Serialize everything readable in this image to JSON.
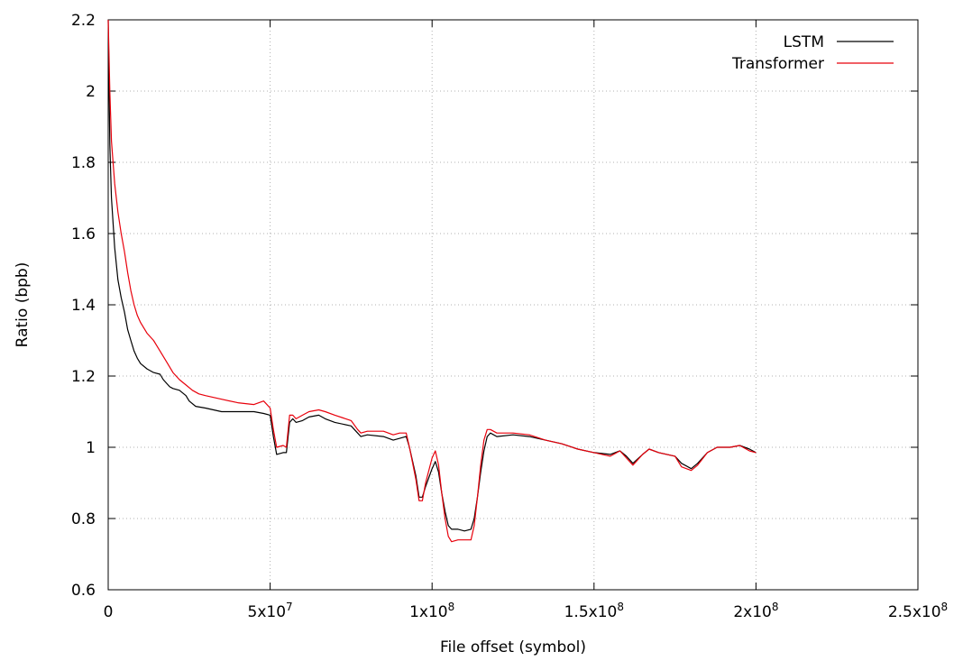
{
  "chart_data": {
    "type": "line",
    "title": "",
    "xlabel": "File offset (symbol)",
    "ylabel": "Ratio (bpb)",
    "xlim": [
      0,
      250000000
    ],
    "ylim": [
      0.6,
      2.2
    ],
    "grid": true,
    "legend_position": "top-right",
    "x_tick_labels": [
      "0",
      "5x10^7",
      "1x10^8",
      "1.5x10^8",
      "2x10^8",
      "2.5x10^8"
    ],
    "y_tick_labels": [
      "0.6",
      "0.8",
      "1",
      "1.2",
      "1.4",
      "1.6",
      "1.8",
      "2",
      "2.2"
    ],
    "series": [
      {
        "name": "LSTM",
        "color": "#000000",
        "points": [
          [
            0,
            2.2
          ],
          [
            500000,
            1.85
          ],
          [
            1000000,
            1.7
          ],
          [
            2000000,
            1.56
          ],
          [
            3000000,
            1.47
          ],
          [
            4000000,
            1.42
          ],
          [
            5000000,
            1.38
          ],
          [
            6000000,
            1.33
          ],
          [
            7000000,
            1.3
          ],
          [
            8000000,
            1.27
          ],
          [
            9000000,
            1.25
          ],
          [
            10000000,
            1.235
          ],
          [
            12000000,
            1.22
          ],
          [
            14000000,
            1.21
          ],
          [
            16000000,
            1.205
          ],
          [
            17000000,
            1.19
          ],
          [
            19000000,
            1.17
          ],
          [
            20000000,
            1.165
          ],
          [
            22000000,
            1.16
          ],
          [
            24000000,
            1.145
          ],
          [
            25000000,
            1.13
          ],
          [
            27000000,
            1.115
          ],
          [
            30000000,
            1.11
          ],
          [
            35000000,
            1.1
          ],
          [
            40000000,
            1.1
          ],
          [
            45000000,
            1.1
          ],
          [
            48000000,
            1.095
          ],
          [
            50000000,
            1.09
          ],
          [
            51000000,
            1.03
          ],
          [
            52000000,
            0.98
          ],
          [
            54000000,
            0.985
          ],
          [
            55000000,
            0.985
          ],
          [
            56000000,
            1.07
          ],
          [
            57000000,
            1.08
          ],
          [
            58000000,
            1.07
          ],
          [
            60000000,
            1.075
          ],
          [
            62000000,
            1.085
          ],
          [
            65000000,
            1.09
          ],
          [
            67000000,
            1.08
          ],
          [
            70000000,
            1.07
          ],
          [
            75000000,
            1.06
          ],
          [
            77000000,
            1.04
          ],
          [
            78000000,
            1.03
          ],
          [
            80000000,
            1.035
          ],
          [
            85000000,
            1.03
          ],
          [
            88000000,
            1.02
          ],
          [
            90000000,
            1.025
          ],
          [
            92000000,
            1.03
          ],
          [
            93000000,
            1.0
          ],
          [
            95000000,
            0.92
          ],
          [
            96000000,
            0.86
          ],
          [
            97000000,
            0.86
          ],
          [
            98000000,
            0.89
          ],
          [
            100000000,
            0.94
          ],
          [
            101000000,
            0.96
          ],
          [
            102000000,
            0.93
          ],
          [
            103000000,
            0.87
          ],
          [
            104000000,
            0.82
          ],
          [
            105000000,
            0.78
          ],
          [
            106000000,
            0.77
          ],
          [
            108000000,
            0.77
          ],
          [
            110000000,
            0.765
          ],
          [
            112000000,
            0.77
          ],
          [
            113000000,
            0.8
          ],
          [
            114000000,
            0.86
          ],
          [
            115000000,
            0.93
          ],
          [
            116000000,
            0.99
          ],
          [
            117000000,
            1.03
          ],
          [
            118000000,
            1.04
          ],
          [
            120000000,
            1.03
          ],
          [
            125000000,
            1.035
          ],
          [
            130000000,
            1.03
          ],
          [
            135000000,
            1.02
          ],
          [
            140000000,
            1.01
          ],
          [
            145000000,
            0.995
          ],
          [
            150000000,
            0.985
          ],
          [
            155000000,
            0.98
          ],
          [
            158000000,
            0.99
          ],
          [
            160000000,
            0.975
          ],
          [
            162000000,
            0.955
          ],
          [
            165000000,
            0.98
          ],
          [
            167000000,
            0.995
          ],
          [
            170000000,
            0.985
          ],
          [
            175000000,
            0.975
          ],
          [
            177000000,
            0.955
          ],
          [
            180000000,
            0.94
          ],
          [
            182000000,
            0.955
          ],
          [
            185000000,
            0.985
          ],
          [
            188000000,
            1.0
          ],
          [
            192000000,
            1.0
          ],
          [
            195000000,
            1.005
          ],
          [
            198000000,
            0.995
          ],
          [
            200000000,
            0.985
          ]
        ]
      },
      {
        "name": "Transformer",
        "color": "#e8000b",
        "points": [
          [
            0,
            2.2
          ],
          [
            500000,
            2.0
          ],
          [
            1000000,
            1.86
          ],
          [
            2000000,
            1.74
          ],
          [
            3000000,
            1.66
          ],
          [
            4000000,
            1.6
          ],
          [
            5000000,
            1.55
          ],
          [
            6000000,
            1.49
          ],
          [
            7000000,
            1.44
          ],
          [
            8000000,
            1.4
          ],
          [
            9000000,
            1.37
          ],
          [
            10000000,
            1.35
          ],
          [
            12000000,
            1.32
          ],
          [
            14000000,
            1.3
          ],
          [
            16000000,
            1.27
          ],
          [
            18000000,
            1.24
          ],
          [
            20000000,
            1.21
          ],
          [
            22000000,
            1.19
          ],
          [
            24000000,
            1.175
          ],
          [
            26000000,
            1.16
          ],
          [
            28000000,
            1.15
          ],
          [
            30000000,
            1.145
          ],
          [
            35000000,
            1.135
          ],
          [
            40000000,
            1.125
          ],
          [
            45000000,
            1.12
          ],
          [
            48000000,
            1.13
          ],
          [
            50000000,
            1.11
          ],
          [
            51000000,
            1.05
          ],
          [
            52000000,
            1.0
          ],
          [
            54000000,
            1.005
          ],
          [
            55000000,
            1.0
          ],
          [
            56000000,
            1.09
          ],
          [
            57000000,
            1.09
          ],
          [
            58000000,
            1.08
          ],
          [
            60000000,
            1.09
          ],
          [
            62000000,
            1.1
          ],
          [
            65000000,
            1.105
          ],
          [
            67000000,
            1.1
          ],
          [
            70000000,
            1.09
          ],
          [
            75000000,
            1.075
          ],
          [
            77000000,
            1.05
          ],
          [
            78000000,
            1.04
          ],
          [
            80000000,
            1.045
          ],
          [
            85000000,
            1.045
          ],
          [
            88000000,
            1.035
          ],
          [
            90000000,
            1.04
          ],
          [
            92000000,
            1.04
          ],
          [
            93000000,
            1.0
          ],
          [
            95000000,
            0.91
          ],
          [
            96000000,
            0.85
          ],
          [
            97000000,
            0.85
          ],
          [
            98000000,
            0.9
          ],
          [
            100000000,
            0.97
          ],
          [
            101000000,
            0.99
          ],
          [
            102000000,
            0.95
          ],
          [
            103000000,
            0.87
          ],
          [
            104000000,
            0.8
          ],
          [
            105000000,
            0.75
          ],
          [
            106000000,
            0.735
          ],
          [
            108000000,
            0.74
          ],
          [
            110000000,
            0.74
          ],
          [
            112000000,
            0.74
          ],
          [
            113000000,
            0.78
          ],
          [
            114000000,
            0.86
          ],
          [
            115000000,
            0.95
          ],
          [
            116000000,
            1.02
          ],
          [
            117000000,
            1.05
          ],
          [
            118000000,
            1.05
          ],
          [
            120000000,
            1.04
          ],
          [
            125000000,
            1.04
          ],
          [
            130000000,
            1.035
          ],
          [
            135000000,
            1.02
          ],
          [
            140000000,
            1.01
          ],
          [
            145000000,
            0.995
          ],
          [
            150000000,
            0.985
          ],
          [
            155000000,
            0.975
          ],
          [
            158000000,
            0.99
          ],
          [
            160000000,
            0.97
          ],
          [
            162000000,
            0.95
          ],
          [
            165000000,
            0.98
          ],
          [
            167000000,
            0.995
          ],
          [
            170000000,
            0.985
          ],
          [
            175000000,
            0.975
          ],
          [
            177000000,
            0.945
          ],
          [
            180000000,
            0.935
          ],
          [
            182000000,
            0.95
          ],
          [
            185000000,
            0.985
          ],
          [
            188000000,
            1.0
          ],
          [
            192000000,
            1.0
          ],
          [
            195000000,
            1.005
          ],
          [
            198000000,
            0.99
          ],
          [
            200000000,
            0.985
          ]
        ]
      }
    ]
  }
}
